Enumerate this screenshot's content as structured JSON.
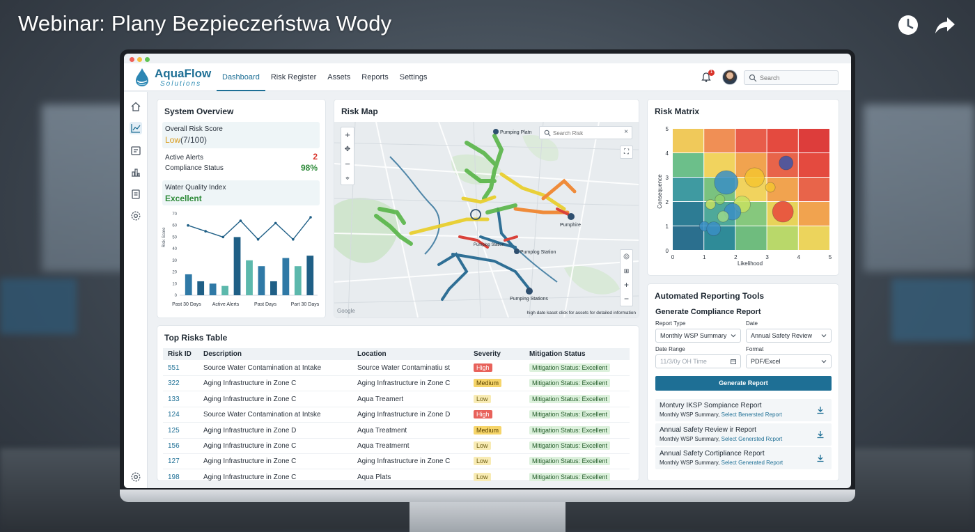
{
  "video": {
    "title": "Webinar: Plany Bezpieczeństwa Wody",
    "icons": [
      "clock-icon",
      "share-arrow-icon"
    ]
  },
  "app": {
    "logo_name": "AquaFlow",
    "logo_sub": "Solutions",
    "nav": [
      "Dashboard",
      "Risk Register",
      "Assets",
      "Reports",
      "Settings"
    ],
    "active_nav": "Dashboard",
    "notification_count": "1",
    "search_placeholder": "Search",
    "sidebar_icons": [
      "home-icon",
      "chart-icon",
      "register-icon",
      "assets-icon",
      "reports-icon",
      "settings-icon",
      "bottom-settings-icon"
    ]
  },
  "overview": {
    "title": "System Overview",
    "risk_score_label": "Overall Risk Score",
    "risk_score_level": "Low",
    "risk_score_value": "(7/100)",
    "alerts_label": "Active Alerts",
    "alerts_value": "2",
    "compliance_label": "Compliance Status",
    "compliance_value": "98%",
    "wqi_label": "Water Quality Index",
    "wqi_value": "Excellent",
    "chart_y_labels": [
      "70",
      "60",
      "50",
      "40",
      "30",
      "20",
      "10",
      "0"
    ],
    "chart_y_title": "Risk Score",
    "chart_x_labels": [
      "Past 30 Days",
      "Active Alerts",
      "Past Days",
      "Part 30 Days"
    ]
  },
  "map": {
    "title": "Risk Map",
    "search_placeholder": "Search Risk",
    "labels": [
      "Pumping Platn",
      "Pumphire",
      "Pumping Stations",
      "Pumplog Station",
      "Pumplog Station"
    ],
    "attribution": "Google",
    "footer": "high date kaset click for assets for detailed information"
  },
  "matrix": {
    "title": "Risk Matrix",
    "y_label": "Consequence",
    "x_label": "Likelihood",
    "y_ticks": [
      "5",
      "4",
      "3",
      "2",
      "1",
      "0"
    ],
    "x_ticks": [
      "0",
      "1",
      "2",
      "3",
      "4",
      "5"
    ]
  },
  "table": {
    "title": "Top Risks Table",
    "headers": [
      "Risk ID",
      "Description",
      "Location",
      "Severity",
      "Mitigation Status"
    ],
    "rows": [
      {
        "id": "551",
        "desc": "Source Water Contamination at Intake",
        "loc": "Source Water Contaminatiu st",
        "sev": "High",
        "sev_class": "high",
        "mit": "Mitigation Status: Excellent"
      },
      {
        "id": "322",
        "desc": "Aging Infrastructure in Zone C",
        "loc": "Aging Infrastructure in Zone C",
        "sev": "Medium",
        "sev_class": "medium",
        "mit": "Mitigation Status: Excellent"
      },
      {
        "id": "133",
        "desc": "Aging Infrastructure in Zone C",
        "loc": "Aqua Treamert",
        "sev": "Low",
        "sev_class": "low",
        "mit": "Mitigation Status: Excellent"
      },
      {
        "id": "124",
        "desc": "Source Water Contamination at Intske",
        "loc": "Aging Infrastructure in Zone D",
        "sev": "High",
        "sev_class": "high",
        "mit": "Mitigation Status: Excellent"
      },
      {
        "id": "125",
        "desc": "Aging Infrastructure in Zone D",
        "loc": "Aqua Treatment",
        "sev": "Medium",
        "sev_class": "medium",
        "mit": "Mitigation Status: Excellent"
      },
      {
        "id": "156",
        "desc": "Aging Infrastructure in Zone C",
        "loc": "Aqua Treatmernt",
        "sev": "Low",
        "sev_class": "low",
        "mit": "Mitigation Status: Excellent"
      },
      {
        "id": "127",
        "desc": "Aging Infrastructure in Zone C",
        "loc": "Aging Infrastructure in Zone C",
        "sev": "Low",
        "sev_class": "low",
        "mit": "Mitigation Status: Excellent"
      },
      {
        "id": "198",
        "desc": "Aging Infrastructure in Zone C",
        "loc": "Aqua Plats",
        "sev": "Low",
        "sev_class": "low",
        "mit": "Mitigation Status: Excellent"
      }
    ]
  },
  "reporting": {
    "title": "Automated Reporting Tools",
    "subtitle": "Generate Compliance Report",
    "report_type_label": "Report Type",
    "report_type_value": "Monthly WSP Summary",
    "date_label": "Date",
    "date_value": "Annual Safety Review",
    "date_range_label": "Date Range",
    "date_range_placeholder": "11/3/0y OH Time",
    "format_label": "Format",
    "format_value": "PDF/Excel",
    "generate_button": "Generate Report",
    "reports": [
      {
        "title": "Montvry IKSP Sompiance Report",
        "sub": "Monthly WSP Summary,",
        "link": "Select Benersted Report"
      },
      {
        "title": "Annual Safety Review ir Report",
        "sub": "Monthly WSP Summary,",
        "link": "Select Genersted Rcport"
      },
      {
        "title": "Annual Safety Cortipliance Report",
        "sub": "Monthly WSP Summary,",
        "link": "Select Generated Report"
      }
    ]
  },
  "chart_data": [
    {
      "type": "line",
      "title": "",
      "ylabel": "Risk Score",
      "ylim": [
        0,
        70
      ],
      "x": [
        0,
        1,
        2,
        3,
        4,
        5,
        6,
        7
      ],
      "values": [
        60,
        55,
        50,
        64,
        48,
        62,
        48,
        67
      ]
    },
    {
      "type": "bar",
      "title": "",
      "ylim": [
        0,
        70
      ],
      "values": [
        18,
        12,
        10,
        8,
        50,
        30,
        25,
        12,
        32,
        25,
        34
      ]
    },
    {
      "type": "scatter",
      "title": "Risk Matrix",
      "xlabel": "Likelihood",
      "ylabel": "Consequence",
      "xlim": [
        0,
        5
      ],
      "ylim": [
        0,
        5
      ],
      "points": [
        {
          "x": 3.6,
          "y": 3.6,
          "size": 10,
          "color": "#3a55a8"
        },
        {
          "x": 1.7,
          "y": 2.8,
          "size": 17,
          "color": "#3a8ec4"
        },
        {
          "x": 2.6,
          "y": 3.0,
          "size": 14,
          "color": "#f4c430"
        },
        {
          "x": 3.1,
          "y": 2.6,
          "size": 7,
          "color": "#f4c430"
        },
        {
          "x": 1.2,
          "y": 1.9,
          "size": 7,
          "color": "#c7e060"
        },
        {
          "x": 2.2,
          "y": 1.9,
          "size": 12,
          "color": "#c7e060"
        },
        {
          "x": 1.9,
          "y": 1.6,
          "size": 12,
          "color": "#3a8ec4"
        },
        {
          "x": 1.5,
          "y": 2.1,
          "size": 7,
          "color": "#8fd06a"
        },
        {
          "x": 3.5,
          "y": 1.6,
          "size": 15,
          "color": "#e8453c"
        },
        {
          "x": 1.0,
          "y": 1.0,
          "size": 7,
          "color": "#3a8ec4"
        },
        {
          "x": 1.3,
          "y": 0.9,
          "size": 10,
          "color": "#3a8ec4"
        },
        {
          "x": 1.6,
          "y": 1.4,
          "size": 8,
          "color": "#9bd98a"
        }
      ]
    }
  ]
}
